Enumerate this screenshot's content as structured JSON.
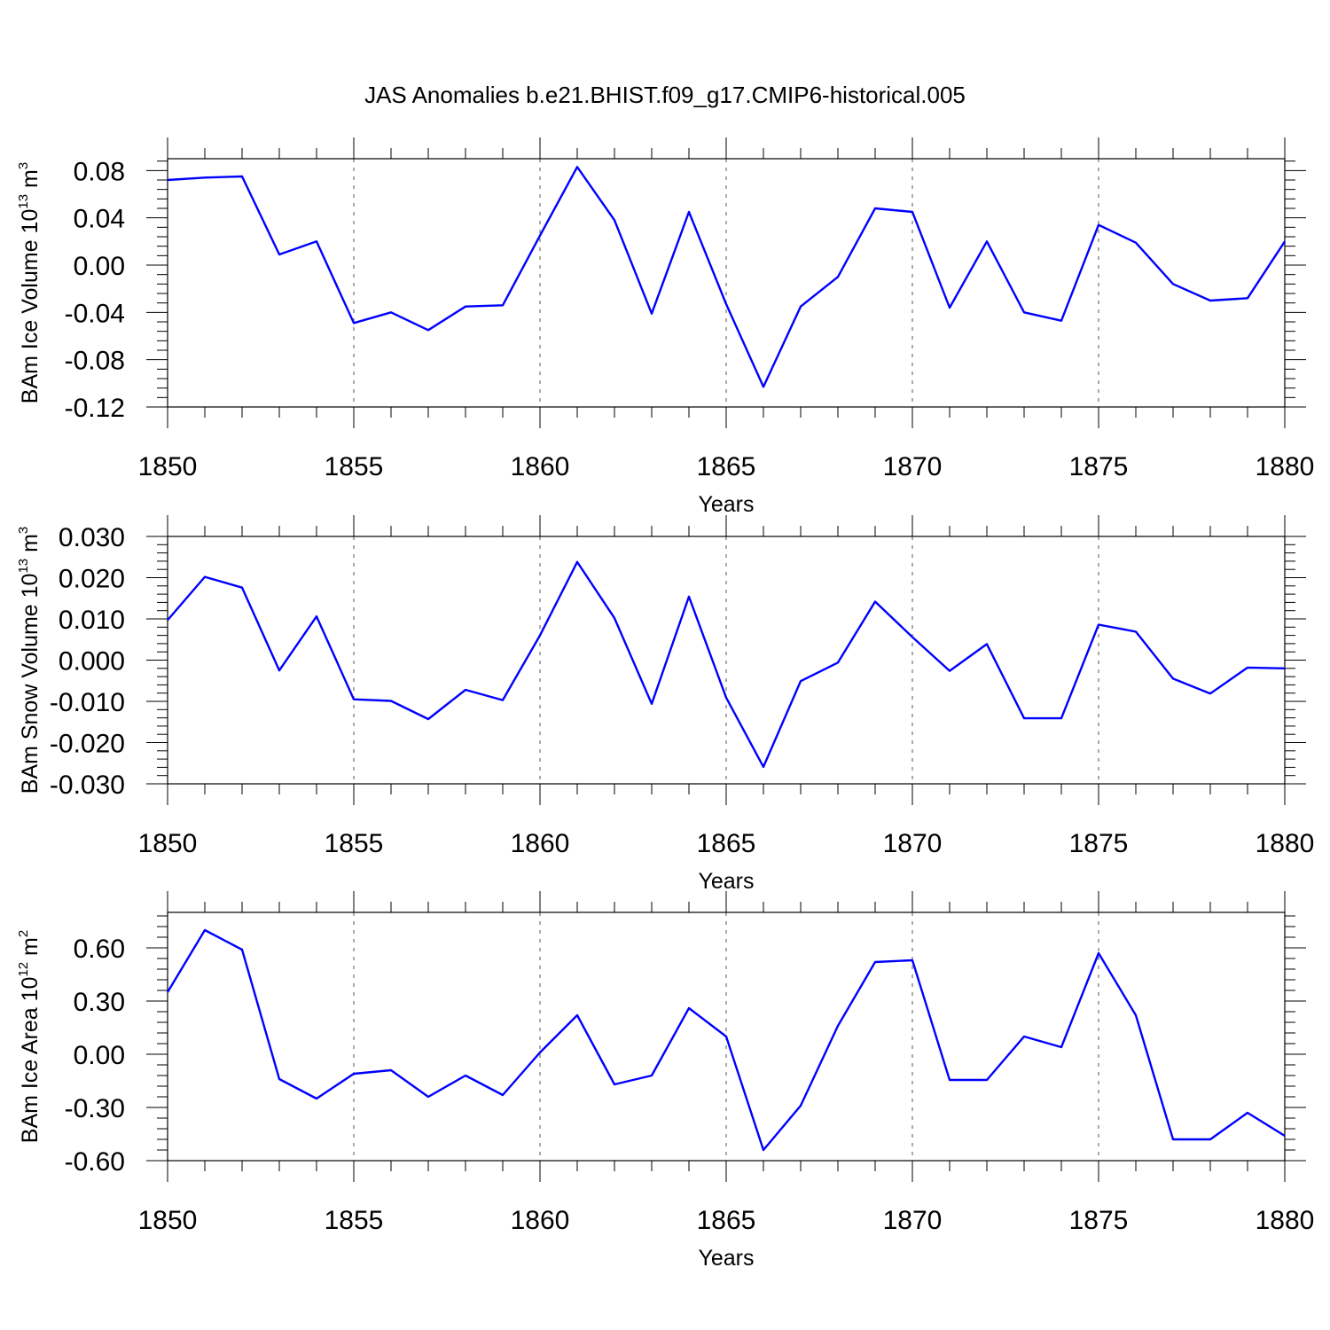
{
  "chart_data": [
    {
      "type": "line",
      "title": "JAS Anomalies b.e21.BHIST.f09_g17.CMIP6-historical.005",
      "xlabel": "Years",
      "ylabel": {
        "base": "BAm Ice Volume 10",
        "exp": "13",
        "unit": " m",
        "unit_exp": "3"
      },
      "xlim": [
        1850,
        1880
      ],
      "ylim": [
        -0.12,
        0.09
      ],
      "x_ticks": [
        1850,
        1855,
        1860,
        1865,
        1870,
        1875,
        1880
      ],
      "x_tick_labels": [
        "1850",
        "1855",
        "1860",
        "1865",
        "1870",
        "1875",
        "1880"
      ],
      "y_ticks": [
        -0.12,
        -0.08,
        -0.04,
        0.0,
        0.04,
        0.08
      ],
      "y_tick_labels": [
        "-0.12",
        "-0.08",
        "-0.04",
        "0.00",
        "0.04",
        "0.08"
      ],
      "grid": "vertical-dashed",
      "color": "#0000ff",
      "x": [
        1850,
        1851,
        1852,
        1853,
        1854,
        1855,
        1856,
        1857,
        1858,
        1859,
        1860,
        1861,
        1862,
        1863,
        1864,
        1865,
        1866,
        1867,
        1868,
        1869,
        1870,
        1871,
        1872,
        1873,
        1874,
        1875,
        1876,
        1877,
        1878,
        1879,
        1880
      ],
      "series": [
        {
          "values": [
            0.072,
            0.074,
            0.075,
            0.009,
            0.02,
            -0.049,
            -0.04,
            -0.055,
            -0.035,
            -0.034,
            0.025,
            0.083,
            0.038,
            -0.041,
            0.045,
            -0.033,
            -0.103,
            -0.035,
            -0.01,
            0.048,
            0.045,
            -0.036,
            0.02,
            -0.04,
            -0.047,
            0.034,
            0.019,
            -0.016,
            -0.03,
            -0.028,
            0.02
          ]
        }
      ]
    },
    {
      "type": "line",
      "xlabel": "Years",
      "ylabel": {
        "base": "BAm Snow Volume 10",
        "exp": "13",
        "unit": " m",
        "unit_exp": "3"
      },
      "xlim": [
        1850,
        1880
      ],
      "ylim": [
        -0.03,
        0.03
      ],
      "x_ticks": [
        1850,
        1855,
        1860,
        1865,
        1870,
        1875,
        1880
      ],
      "x_tick_labels": [
        "1850",
        "1855",
        "1860",
        "1865",
        "1870",
        "1875",
        "1880"
      ],
      "y_ticks": [
        -0.03,
        -0.02,
        -0.01,
        0.0,
        0.01,
        0.02,
        0.03
      ],
      "y_tick_labels": [
        "-0.030",
        "-0.020",
        "-0.010",
        "0.000",
        "0.010",
        "0.020",
        "0.030"
      ],
      "grid": "vertical-dashed",
      "color": "#0000ff",
      "x": [
        1850,
        1851,
        1852,
        1853,
        1854,
        1855,
        1856,
        1857,
        1858,
        1859,
        1860,
        1861,
        1862,
        1863,
        1864,
        1865,
        1866,
        1867,
        1868,
        1869,
        1870,
        1871,
        1872,
        1873,
        1874,
        1875,
        1876,
        1877,
        1878,
        1879,
        1880
      ],
      "series": [
        {
          "values": [
            0.0097,
            0.0202,
            0.0176,
            -0.0025,
            0.0106,
            -0.0095,
            -0.0099,
            -0.0143,
            -0.0072,
            -0.0097,
            0.006,
            0.0238,
            0.0102,
            -0.0106,
            0.0154,
            -0.0091,
            -0.0259,
            -0.0051,
            -0.0006,
            0.0142,
            0.0056,
            -0.0026,
            0.0039,
            -0.0141,
            -0.0141,
            0.0086,
            0.0069,
            -0.0045,
            -0.0081,
            -0.0018,
            -0.002
          ]
        }
      ]
    },
    {
      "type": "line",
      "xlabel": "Years",
      "ylabel": {
        "base": "BAm Ice Area 10",
        "exp": "12",
        "unit": " m",
        "unit_exp": "2"
      },
      "xlim": [
        1850,
        1880
      ],
      "ylim": [
        -0.6,
        0.8
      ],
      "x_ticks": [
        1850,
        1855,
        1860,
        1865,
        1870,
        1875,
        1880
      ],
      "x_tick_labels": [
        "1850",
        "1855",
        "1860",
        "1865",
        "1870",
        "1875",
        "1880"
      ],
      "y_ticks": [
        -0.6,
        -0.3,
        0.0,
        0.3,
        0.6
      ],
      "y_tick_labels": [
        "-0.60",
        "-0.30",
        "0.00",
        "0.30",
        "0.60"
      ],
      "grid": "vertical-dashed",
      "color": "#0000ff",
      "x": [
        1850,
        1851,
        1852,
        1853,
        1854,
        1855,
        1856,
        1857,
        1858,
        1859,
        1860,
        1861,
        1862,
        1863,
        1864,
        1865,
        1866,
        1867,
        1868,
        1869,
        1870,
        1871,
        1872,
        1873,
        1874,
        1875,
        1876,
        1877,
        1878,
        1879,
        1880
      ],
      "series": [
        {
          "values": [
            0.35,
            0.7,
            0.59,
            -0.14,
            -0.25,
            -0.11,
            -0.09,
            -0.24,
            -0.12,
            -0.23,
            0.01,
            0.22,
            -0.17,
            -0.12,
            0.26,
            0.1,
            -0.54,
            -0.29,
            0.16,
            0.52,
            0.53,
            -0.145,
            -0.145,
            0.1,
            0.04,
            0.57,
            0.22,
            -0.48,
            -0.48,
            -0.33,
            -0.46
          ]
        }
      ]
    }
  ]
}
